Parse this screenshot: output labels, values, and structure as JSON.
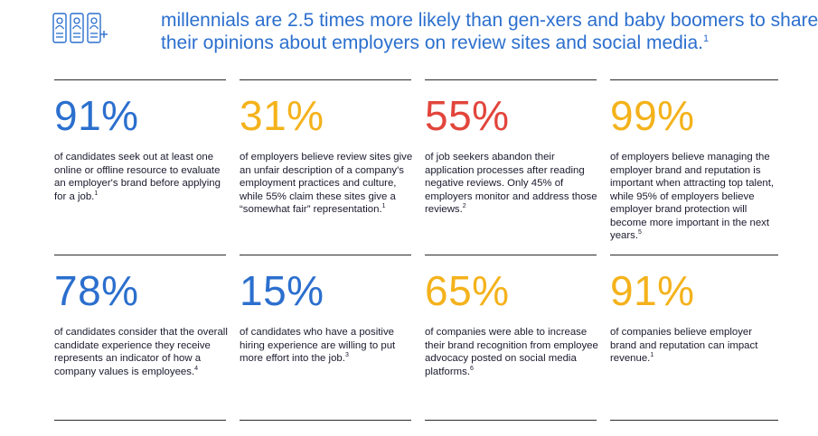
{
  "header": {
    "icons": [
      "person-card-icon",
      "person-card-icon",
      "person-card-add-icon"
    ],
    "headline_line1": "millennials are 2.5 times more likely than gen-xers and baby boomers to share",
    "headline_line2": "their opinions about employers on review sites and social media.",
    "headline_ref": "1"
  },
  "colors": {
    "blue": "#2b6fce",
    "orange": "#f4b21b",
    "red": "#e2453c"
  },
  "stats": [
    {
      "value": "91%",
      "color": "blue",
      "text": "of candidates seek out at least one online or offline resource to evaluate an employer's brand before applying for a job.",
      "ref": "1"
    },
    {
      "value": "31%",
      "color": "orange",
      "text": "of employers believe review sites give an unfair description of a company's employment practices and culture, while 55% claim these sites give a “somewhat fair” representation.",
      "ref": "1"
    },
    {
      "value": "55%",
      "color": "red",
      "text": "of job seekers abandon their application processes after reading negative reviews. Only 45% of employers monitor and address those reviews.",
      "ref": "2"
    },
    {
      "value": "99%",
      "color": "orange",
      "text": "of employers believe managing the employer brand and reputation is important when attracting top talent, while 95% of employers believe employer brand protection will become more important in the next years.",
      "ref": "5"
    },
    {
      "value": "78%",
      "color": "blue",
      "text": "of candidates consider that the overall candidate experience they receive represents an indicator of how a company values is employees.",
      "ref": "4"
    },
    {
      "value": "15%",
      "color": "blue",
      "text": "of candidates who have a positive hiring experience are willing to put more effort into the job.",
      "ref": "3"
    },
    {
      "value": "65%",
      "color": "orange",
      "text": "of companies were able to increase their brand recognition from employee advocacy posted on social media platforms.",
      "ref": "6"
    },
    {
      "value": "91%",
      "color": "orange",
      "text": "of companies believe employer brand and reputation can impact revenue.",
      "ref": "1"
    }
  ]
}
